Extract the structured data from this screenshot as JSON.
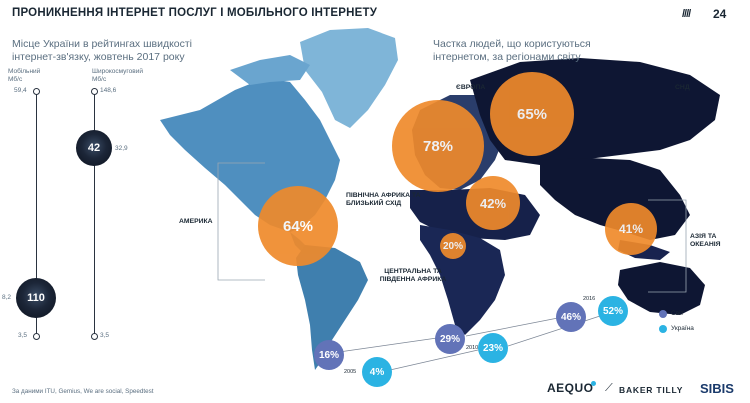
{
  "header": {
    "title": "ПРОНИКНЕННЯ ІНТЕРНЕТ ПОСЛУГ І МОБІЛЬНОГО ІНТЕРНЕТУ",
    "slashes": "////",
    "page": "24"
  },
  "speed": {
    "title": "Місце України в рейтингах швидкості інтернет-зв'язку, жовтень 2017 року",
    "mobile": {
      "label": "Мобільний Мб/с",
      "top": "59,4",
      "bottom": "3,5",
      "mid_value": "8,2",
      "rank": "110"
    },
    "broadband": {
      "label": "Широкосмуговий Мб/с",
      "top": "148,6",
      "bottom": "3,5",
      "mid_value": "32,9",
      "rank": "42"
    }
  },
  "share": {
    "title": "Частка людей, що користуються інтернетом, за регіонами світу",
    "regions": [
      {
        "name": "ЄВРОПА",
        "value": "78%"
      },
      {
        "name": "СНД",
        "value": "65%"
      },
      {
        "name": "АМЕРИКА",
        "value": "64%"
      },
      {
        "name": "ПІВНІЧНА АФРИКА ТА БЛИЗЬКИЙ СХІД",
        "value": "42%"
      },
      {
        "name": "АЗІЯ ТА ОКЕАНІЯ",
        "value": "41%"
      },
      {
        "name": "ЦЕНТРАЛЬНА ТА ПІВДЕННА АФРИКА",
        "value": "20%"
      }
    ]
  },
  "timeline": {
    "years": [
      "2005",
      "2010",
      "2016"
    ],
    "world": [
      "16%",
      "29%",
      "46%"
    ],
    "ukraine": [
      "4%",
      "23%",
      "52%"
    ],
    "legend_world": "Світ",
    "legend_ukraine": "Україна"
  },
  "colors": {
    "orange": "#ef8a2b",
    "world": "#6273b8",
    "ukraine": "#2bb3e3",
    "navy": "#0e1633"
  },
  "footer": {
    "source": "За даними ITU, Gemius, We are social, Speedtest",
    "logos": [
      "AEQUO",
      "BAKER TILLY",
      "SIBIS"
    ]
  }
}
